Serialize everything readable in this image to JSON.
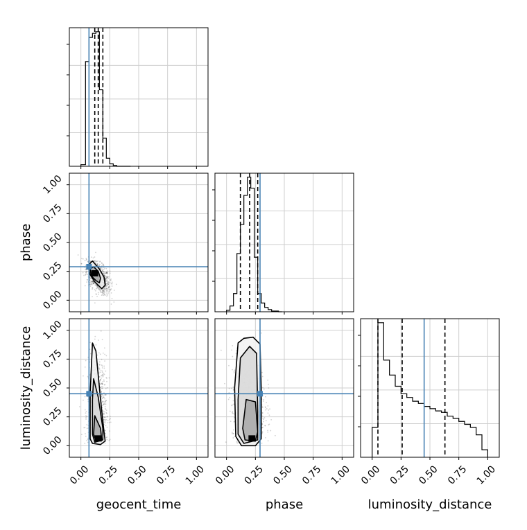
{
  "chart_data": {
    "type": "corner",
    "parameters": [
      "geocent_time",
      "phase",
      "luminosity_distance"
    ],
    "axis_range": [
      -0.1,
      1.1
    ],
    "ticks": [
      "0.00",
      "0.25",
      "0.50",
      "0.75",
      "1.00"
    ],
    "tick_values": [
      0,
      0.25,
      0.5,
      0.75,
      1.0
    ],
    "truths": [
      0.07,
      0.29,
      0.45
    ],
    "truth_color": "#4682b4",
    "grid": true,
    "quantiles": {
      "geocent_time": [
        0.12,
        0.15,
        0.19
      ],
      "phase": [
        0.12,
        0.2,
        0.27
      ],
      "luminosity_distance": [
        0.05,
        0.26,
        0.63
      ]
    },
    "histograms": {
      "geocent_time": {
        "bin_edges": [
          0.0,
          0.04,
          0.07,
          0.1,
          0.13,
          0.16,
          0.19,
          0.22,
          0.25,
          0.28,
          0.31,
          0.34,
          0.37,
          0.4,
          0.43
        ],
        "counts": [
          2,
          130,
          160,
          165,
          167,
          95,
          35,
          10,
          3,
          1,
          0,
          0,
          0,
          0
        ]
      },
      "phase": {
        "bin_edges": [
          0.0,
          0.03,
          0.06,
          0.09,
          0.12,
          0.15,
          0.18,
          0.21,
          0.24,
          0.27,
          0.3,
          0.33,
          0.36,
          0.39,
          0.42,
          0.45,
          0.48
        ],
        "counts": [
          2,
          8,
          25,
          80,
          120,
          160,
          185,
          170,
          75,
          25,
          12,
          6,
          3,
          1,
          1,
          0
        ]
      },
      "luminosity_distance": {
        "bin_edges": [
          0.0,
          0.05,
          0.1,
          0.15,
          0.2,
          0.25,
          0.3,
          0.35,
          0.4,
          0.45,
          0.5,
          0.55,
          0.6,
          0.65,
          0.7,
          0.75,
          0.8,
          0.85,
          0.9,
          0.95,
          1.0
        ],
        "counts": [
          40,
          180,
          130,
          110,
          95,
          85,
          80,
          75,
          72,
          68,
          65,
          62,
          60,
          55,
          52,
          48,
          44,
          40,
          30,
          10
        ]
      }
    },
    "contours": {
      "phase_vs_geocent_time": [
        {
          "level": "outer",
          "points": [
            [
              0.06,
              0.3
            ],
            [
              0.1,
              0.34
            ],
            [
              0.16,
              0.27
            ],
            [
              0.2,
              0.2
            ],
            [
              0.21,
              0.13
            ],
            [
              0.18,
              0.1
            ],
            [
              0.12,
              0.16
            ],
            [
              0.08,
              0.22
            ]
          ]
        },
        {
          "level": "inner",
          "points": [
            [
              0.08,
              0.27
            ],
            [
              0.11,
              0.29
            ],
            [
              0.15,
              0.25
            ],
            [
              0.17,
              0.19
            ],
            [
              0.16,
              0.15
            ],
            [
              0.13,
              0.17
            ],
            [
              0.09,
              0.21
            ]
          ]
        }
      ],
      "luminosity_distance_vs_geocent_time": [
        {
          "level": "outer",
          "points": [
            [
              0.1,
              0.89
            ],
            [
              0.13,
              0.82
            ],
            [
              0.17,
              0.4
            ],
            [
              0.2,
              0.12
            ],
            [
              0.21,
              0.04
            ],
            [
              0.17,
              0.01
            ],
            [
              0.1,
              0.02
            ],
            [
              0.08,
              0.06
            ],
            [
              0.08,
              0.45
            ]
          ]
        },
        {
          "level": "middle",
          "points": [
            [
              0.11,
              0.58
            ],
            [
              0.15,
              0.42
            ],
            [
              0.19,
              0.15
            ],
            [
              0.19,
              0.05
            ],
            [
              0.12,
              0.03
            ],
            [
              0.1,
              0.1
            ],
            [
              0.1,
              0.4
            ]
          ]
        },
        {
          "level": "inner",
          "points": [
            [
              0.12,
              0.26
            ],
            [
              0.17,
              0.15
            ],
            [
              0.18,
              0.05
            ],
            [
              0.13,
              0.04
            ],
            [
              0.11,
              0.1
            ]
          ]
        }
      ],
      "luminosity_distance_vs_phase": [
        {
          "level": "outer",
          "points": [
            [
              0.1,
              0.89
            ],
            [
              0.15,
              0.93
            ],
            [
              0.23,
              0.94
            ],
            [
              0.29,
              0.88
            ],
            [
              0.3,
              0.5
            ],
            [
              0.3,
              0.06
            ],
            [
              0.25,
              0.0
            ],
            [
              0.13,
              0.0
            ],
            [
              0.08,
              0.08
            ],
            [
              0.07,
              0.5
            ]
          ]
        },
        {
          "level": "middle",
          "points": [
            [
              0.12,
              0.76
            ],
            [
              0.2,
              0.86
            ],
            [
              0.26,
              0.8
            ],
            [
              0.27,
              0.3
            ],
            [
              0.27,
              0.05
            ],
            [
              0.15,
              0.02
            ],
            [
              0.1,
              0.1
            ],
            [
              0.1,
              0.4
            ]
          ]
        },
        {
          "level": "inner",
          "points": [
            [
              0.17,
              0.4
            ],
            [
              0.25,
              0.38
            ],
            [
              0.27,
              0.12
            ],
            [
              0.25,
              0.04
            ],
            [
              0.16,
              0.05
            ],
            [
              0.14,
              0.15
            ]
          ]
        }
      ]
    }
  }
}
